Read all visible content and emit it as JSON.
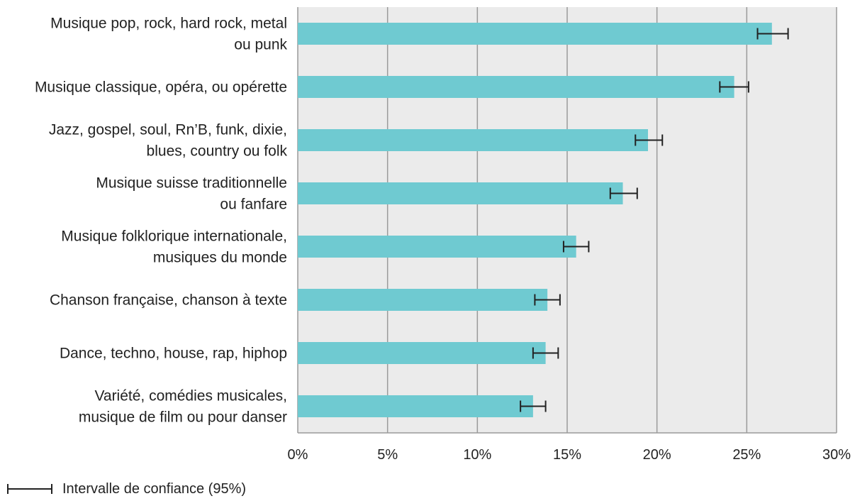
{
  "chart_data": {
    "type": "bar",
    "orientation": "horizontal",
    "categories": [
      [
        "Musique pop, rock, hard rock, metal",
        "ou punk"
      ],
      [
        "Musique classique, opéra, ou opérette"
      ],
      [
        "Jazz, gospel, soul, Rn’B, funk, dixie,",
        "blues, country ou folk"
      ],
      [
        "Musique suisse traditionnelle",
        "ou fanfare"
      ],
      [
        "Musique folklorique internationale,",
        "musiques du monde"
      ],
      [
        "Chanson française, chanson à texte"
      ],
      [
        "Dance, techno, house, rap, hiphop"
      ],
      [
        "Variété, comédies musicales,",
        "musique de film ou pour danser"
      ]
    ],
    "values": [
      26.4,
      24.3,
      19.5,
      18.1,
      15.5,
      13.9,
      13.8,
      13.1
    ],
    "ci_low": [
      25.6,
      23.5,
      18.8,
      17.4,
      14.8,
      13.2,
      13.1,
      12.4
    ],
    "ci_high": [
      27.3,
      25.1,
      20.3,
      18.9,
      16.2,
      14.6,
      14.5,
      13.8
    ],
    "xlim": [
      0,
      30
    ],
    "xticks": [
      "0%",
      "5%",
      "10%",
      "15%",
      "20%",
      "25%",
      "30%"
    ],
    "grid": "vertical",
    "legend": {
      "label": "Intervalle de confiance (95%)",
      "placement": "bottom-left"
    },
    "colors": {
      "bar": "#6fcad1",
      "plot_background": "#ebebeb",
      "grid": "#9a9a9a",
      "error_bar": "#222222"
    }
  }
}
